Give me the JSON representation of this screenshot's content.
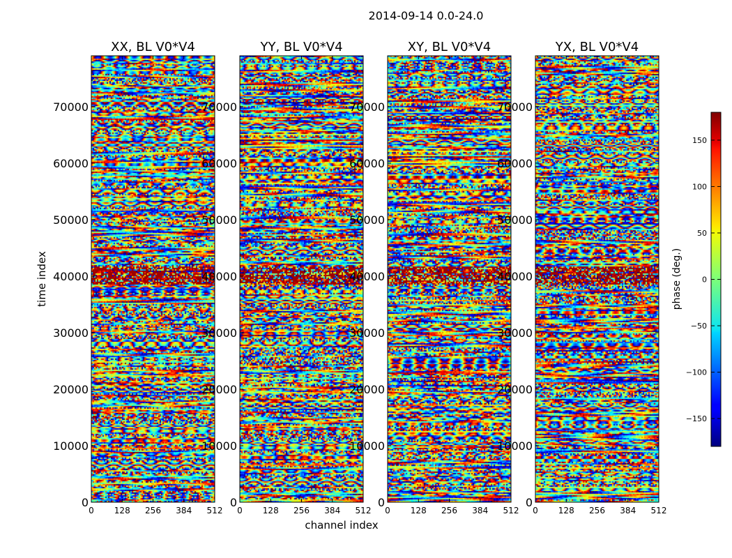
{
  "chart_data": {
    "type": "heatmap",
    "title": "2014-09-14 0.0-24.0",
    "xlabel": "channel index",
    "ylabel": "time index",
    "xlim": [
      0,
      512
    ],
    "ylim": [
      0,
      79000
    ],
    "x_ticks": [
      "0",
      "128",
      "256",
      "384",
      "512"
    ],
    "y_ticks": [
      "0",
      "10000",
      "20000",
      "30000",
      "40000",
      "50000",
      "60000",
      "70000"
    ],
    "colormap": "jet",
    "panels": [
      {
        "title": "XX, BL V0*V4"
      },
      {
        "title": "YY, BL V0*V4"
      },
      {
        "title": "XY, BL V0*V4"
      },
      {
        "title": "YX, BL V0*V4"
      }
    ],
    "colorbar": {
      "label": "phase (deg.)",
      "range": [
        -180,
        180
      ],
      "ticks": [
        "150",
        "100",
        "50",
        "0",
        "−50",
        "−100",
        "−150"
      ]
    }
  }
}
